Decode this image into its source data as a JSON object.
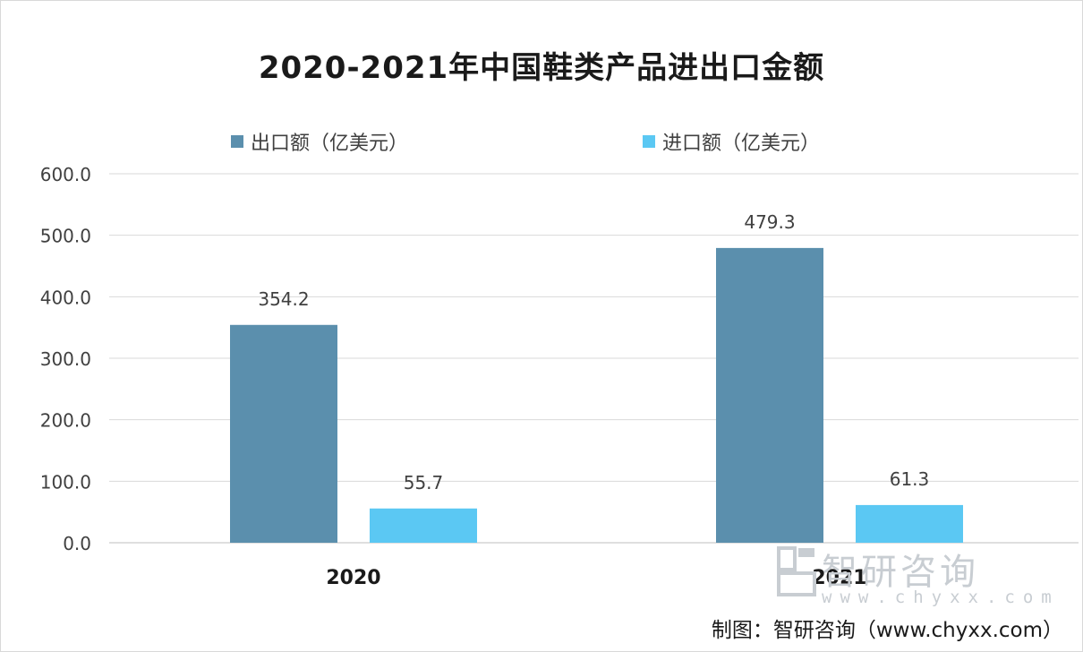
{
  "chart_data": {
    "type": "bar",
    "title": "2020-2021年中国鞋类产品进出口金额",
    "categories": [
      "2020",
      "2021"
    ],
    "series": [
      {
        "name": "出口额（亿美元）",
        "values": [
          354.2,
          479.3
        ],
        "labels": [
          "354.2",
          "479.3"
        ],
        "color": "#5b8fad"
      },
      {
        "name": "进口额（亿美元）",
        "values": [
          55.7,
          61.3
        ],
        "labels": [
          "55.7",
          "61.3"
        ],
        "color": "#5bc8f3"
      }
    ],
    "yticks": [
      "0.0",
      "100.0",
      "200.0",
      "300.0",
      "400.0",
      "500.0",
      "600.0"
    ],
    "ylim": [
      0,
      600
    ],
    "grid": true,
    "legend_position": "top"
  },
  "credit": "制图：智研咨询（www.chyxx.com）",
  "watermark": {
    "name": "智研咨询",
    "url": "www.chyxx.com"
  }
}
